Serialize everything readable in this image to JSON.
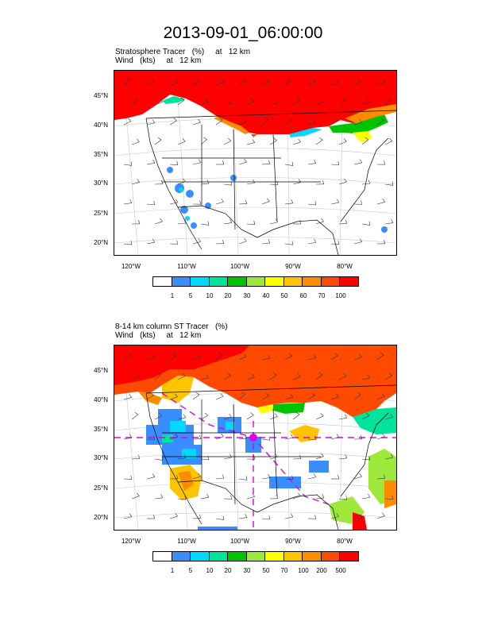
{
  "title": "2013-09-01_06:00:00",
  "panels": [
    {
      "subtitle_line1": "Stratosphere Tracer   (%)     at   12 km",
      "subtitle_line2": "Wind   (kts)     at   12 km",
      "lat_labels": [
        "45°N",
        "40°N",
        "35°N",
        "30°N",
        "25°N",
        "20°N"
      ],
      "lon_labels": [
        "120°W",
        "110°W",
        "100°W",
        "90°W",
        "80°W"
      ],
      "colorbar_labels": [
        "1",
        "5",
        "10",
        "20",
        "30",
        "40",
        "50",
        "60",
        "70",
        "100"
      ]
    },
    {
      "subtitle_line1": "8-14 km column ST Tracer   (%)",
      "subtitle_line2": "Wind   (kts)     at   12 km",
      "lat_labels": [
        "45°N",
        "40°N",
        "35°N",
        "30°N",
        "25°N",
        "20°N"
      ],
      "lon_labels": [
        "120°W",
        "110°W",
        "100°W",
        "90°W",
        "80°W"
      ],
      "colorbar_labels": [
        "1",
        "5",
        "10",
        "20",
        "30",
        "50",
        "70",
        "100",
        "200",
        "500"
      ]
    }
  ],
  "colors": {
    "palette": [
      "#ffffff",
      "#3a8dff",
      "#00d8ff",
      "#00e39a",
      "#00c400",
      "#9ee83c",
      "#ffff00",
      "#ffc400",
      "#ff8c00",
      "#ff4a00",
      "#ff0000"
    ]
  },
  "chart_data": [
    {
      "type": "heatmap",
      "title": "Stratosphere Tracer   (%)     at   12 km",
      "ylim": [
        18,
        49
      ],
      "xlim": [
        -125,
        -73
      ],
      "levels": [
        1,
        5,
        10,
        20,
        30,
        40,
        50,
        60,
        70,
        100
      ],
      "overlay": "wind barbs"
    },
    {
      "type": "heatmap",
      "title": "8-14 km column ST Tracer   (%)",
      "ylim": [
        18,
        49
      ],
      "xlim": [
        -125,
        -73
      ],
      "levels": [
        1,
        5,
        10,
        20,
        30,
        50,
        70,
        100,
        200,
        500
      ],
      "overlay": "wind barbs"
    }
  ]
}
